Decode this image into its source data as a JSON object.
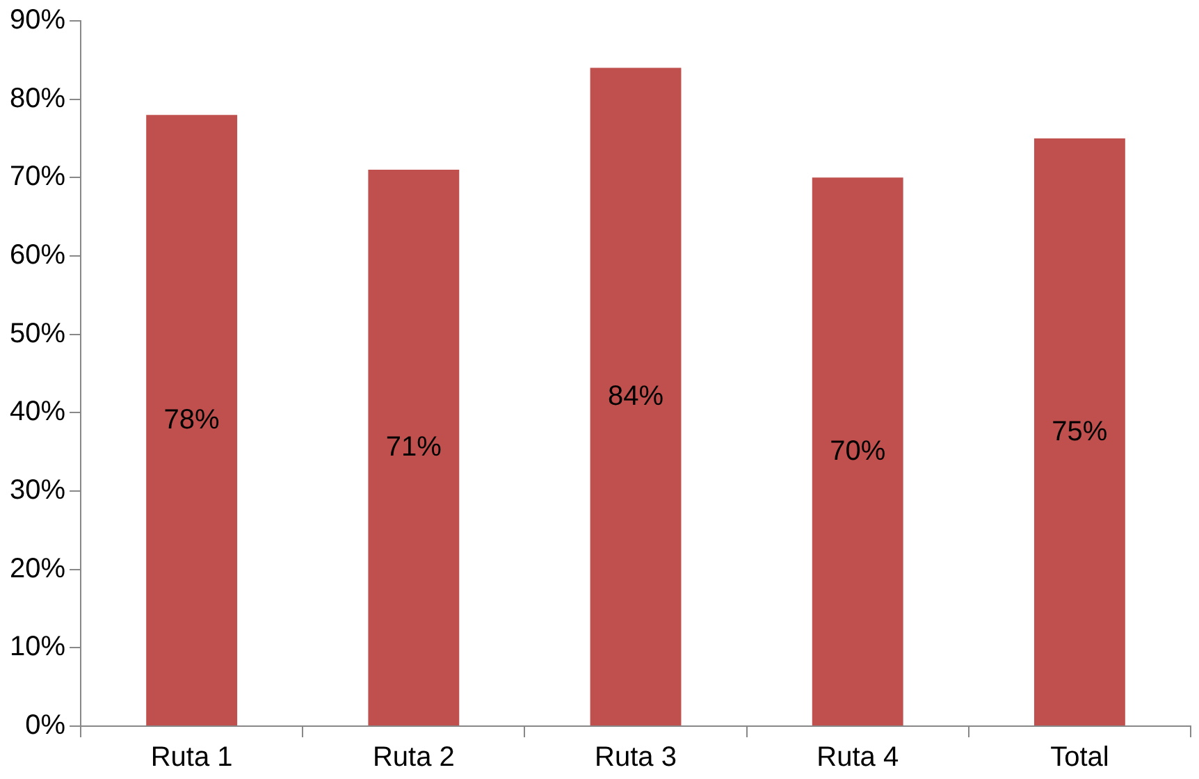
{
  "chart_data": {
    "type": "bar",
    "categories": [
      "Ruta 1",
      "Ruta 2",
      "Ruta 3",
      "Ruta 4",
      "Total"
    ],
    "values": [
      78,
      71,
      84,
      70,
      75
    ],
    "color": "#c0504d",
    "value_labels": [
      "78%",
      "71%",
      "84%",
      "70%",
      "75%"
    ],
    "grid": false,
    "legend": false,
    "ylim": [
      0,
      90
    ],
    "yticks": [
      {
        "value": 0,
        "label": "0%"
      },
      {
        "value": 10,
        "label": "10%"
      },
      {
        "value": 20,
        "label": "20%"
      },
      {
        "value": 30,
        "label": "30%"
      },
      {
        "value": 40,
        "label": "40%"
      },
      {
        "value": 50,
        "label": "50%"
      },
      {
        "value": 60,
        "label": "60%"
      },
      {
        "value": 70,
        "label": "70%"
      },
      {
        "value": 80,
        "label": "80%"
      },
      {
        "value": 90,
        "label": "90%"
      }
    ]
  }
}
